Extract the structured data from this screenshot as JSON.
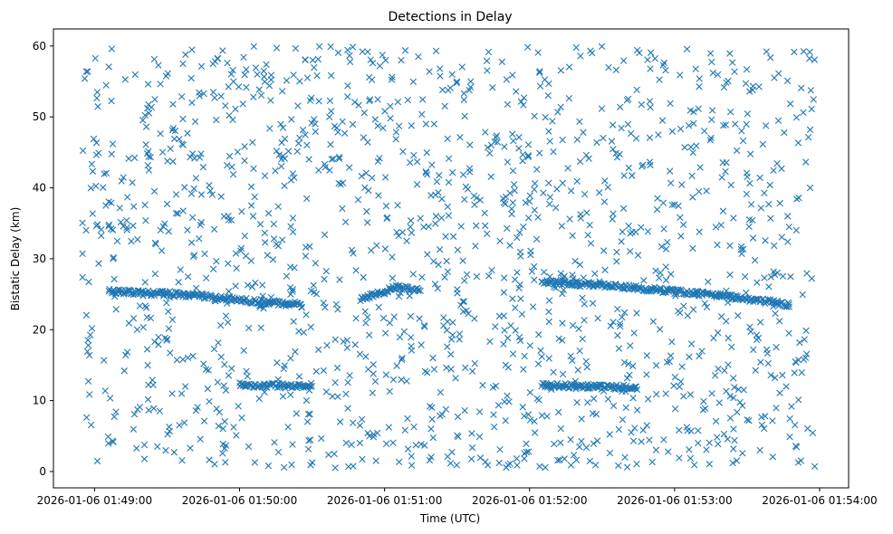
{
  "chart_data": {
    "type": "scatter",
    "title": "Detections in Delay",
    "xlabel": "Time (UTC)",
    "ylabel": "Bistatic Delay (km)",
    "marker": "x",
    "color": "#1f77b4",
    "grid": false,
    "legend": "none",
    "xlim": [
      "2026-01-06 01:48:43",
      "2026-01-06 01:54:12"
    ],
    "ylim": [
      -2.3,
      62.4
    ],
    "xticks": [
      "2026-01-06 01:49:00",
      "2026-01-06 01:50:00",
      "2026-01-06 01:51:00",
      "2026-01-06 01:52:00",
      "2026-01-06 01:53:00",
      "2026-01-06 01:54:00"
    ],
    "yticks": [
      0,
      10,
      20,
      30,
      40,
      50,
      60
    ],
    "series": [
      {
        "x_start": "2026-01-06 01:48:55",
        "x_end": "2026-01-06 01:53:58",
        "x": [],
        "y": []
      }
    ],
    "tracks": [
      {
        "x": [
          "2026-01-06 01:49:06",
          "2026-01-06 01:49:36",
          "2026-01-06 01:50:06",
          "2026-01-06 01:50:26"
        ],
        "y": [
          25.4,
          25.0,
          24.0,
          23.5
        ]
      },
      {
        "x": [
          "2026-01-06 01:50:00",
          "2026-01-06 01:50:30"
        ],
        "y": [
          12.2,
          12.0
        ]
      },
      {
        "x": [
          "2026-01-06 01:50:50",
          "2026-01-06 01:51:05",
          "2026-01-06 01:51:15"
        ],
        "y": [
          24.3,
          26.0,
          25.5
        ]
      },
      {
        "x": [
          "2026-01-06 01:51:30",
          "2026-01-06 01:51:30"
        ],
        "y": [
          25.5,
          25.5
        ]
      },
      {
        "x": [
          "2026-01-06 01:52:05",
          "2026-01-06 01:52:40",
          "2026-01-06 01:53:20",
          "2026-01-06 01:53:48"
        ],
        "y": [
          26.8,
          26.0,
          24.8,
          23.5
        ]
      },
      {
        "x": [
          "2026-01-06 01:52:05",
          "2026-01-06 01:52:45"
        ],
        "y": [
          12.2,
          11.8
        ]
      }
    ]
  }
}
